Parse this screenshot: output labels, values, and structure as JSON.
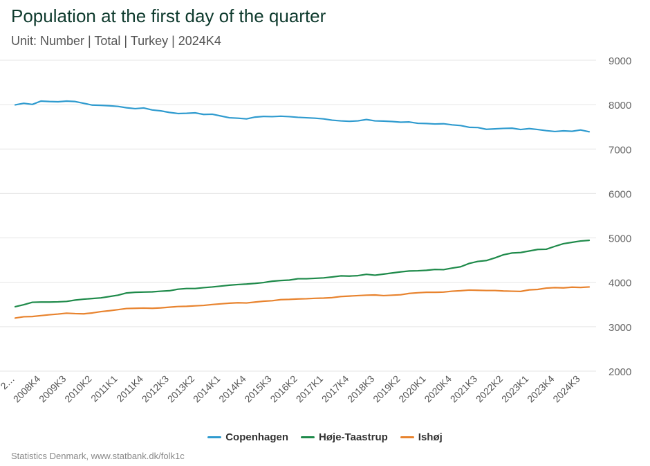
{
  "header": {
    "title": "Population at the first day of the quarter",
    "subtitle": "Unit: Number | Total | Turkey | 2024K4"
  },
  "footer": {
    "credits": "Statistics Denmark, www.statbank.dk/folk1c"
  },
  "chart_data": {
    "type": "line",
    "title": "Population at the first day of the quarter",
    "subtitle": "Unit: Number | Total | Turkey | 2024K4",
    "xlabel": "",
    "ylabel": "",
    "y_axis_position": "right",
    "ylim": [
      2000,
      9000
    ],
    "y_ticks": [
      2000,
      3000,
      4000,
      5000,
      6000,
      7000,
      8000,
      9000
    ],
    "grid": true,
    "legend_position": "bottom",
    "x_tick_labels": [
      "2…",
      "2008K4",
      "2009K3",
      "2010K2",
      "2011K1",
      "2011K4",
      "2012K3",
      "2013K2",
      "2014K1",
      "2014K4",
      "2015K3",
      "2016K2",
      "2017K1",
      "2017K4",
      "2018K3",
      "2019K2",
      "2020K1",
      "2020K4",
      "2021K3",
      "2022K2",
      "2023K1",
      "2023K4",
      "2024K3"
    ],
    "x": [
      "2008K1",
      "2008K2",
      "2008K3",
      "2008K4",
      "2009K1",
      "2009K2",
      "2009K3",
      "2009K4",
      "2010K1",
      "2010K2",
      "2010K3",
      "2010K4",
      "2011K1",
      "2011K2",
      "2011K3",
      "2011K4",
      "2012K1",
      "2012K2",
      "2012K3",
      "2012K4",
      "2013K1",
      "2013K2",
      "2013K3",
      "2013K4",
      "2014K1",
      "2014K2",
      "2014K3",
      "2014K4",
      "2015K1",
      "2015K2",
      "2015K3",
      "2015K4",
      "2016K1",
      "2016K2",
      "2016K3",
      "2016K4",
      "2017K1",
      "2017K2",
      "2017K3",
      "2017K4",
      "2018K1",
      "2018K2",
      "2018K3",
      "2018K4",
      "2019K1",
      "2019K2",
      "2019K3",
      "2019K4",
      "2020K1",
      "2020K2",
      "2020K3",
      "2020K4",
      "2021K1",
      "2021K2",
      "2021K3",
      "2021K4",
      "2022K1",
      "2022K2",
      "2022K3",
      "2022K4",
      "2023K1",
      "2023K2",
      "2023K3",
      "2023K4",
      "2024K1",
      "2024K2",
      "2024K3",
      "2024K4"
    ],
    "series": [
      {
        "name": "Copenhagen",
        "color": "#2f9bcf",
        "values": [
          7995,
          8030,
          8005,
          8080,
          8070,
          8065,
          8080,
          8070,
          8030,
          7990,
          7985,
          7975,
          7960,
          7930,
          7910,
          7925,
          7880,
          7860,
          7825,
          7800,
          7805,
          7815,
          7780,
          7785,
          7745,
          7705,
          7695,
          7680,
          7720,
          7735,
          7730,
          7740,
          7730,
          7715,
          7705,
          7695,
          7680,
          7650,
          7635,
          7625,
          7635,
          7665,
          7635,
          7630,
          7620,
          7605,
          7610,
          7580,
          7575,
          7565,
          7570,
          7545,
          7530,
          7490,
          7485,
          7445,
          7455,
          7465,
          7470,
          7440,
          7460,
          7440,
          7415,
          7395,
          7410,
          7400,
          7430,
          7390
        ]
      },
      {
        "name": "Høje-Taastrup",
        "color": "#1e8a4a",
        "values": [
          3450,
          3495,
          3550,
          3555,
          3555,
          3560,
          3570,
          3600,
          3620,
          3635,
          3650,
          3680,
          3710,
          3760,
          3775,
          3780,
          3785,
          3800,
          3810,
          3845,
          3860,
          3860,
          3880,
          3895,
          3915,
          3935,
          3950,
          3960,
          3975,
          3995,
          4025,
          4040,
          4050,
          4080,
          4080,
          4090,
          4100,
          4120,
          4145,
          4140,
          4150,
          4180,
          4160,
          4185,
          4210,
          4235,
          4255,
          4260,
          4270,
          4290,
          4285,
          4320,
          4350,
          4425,
          4470,
          4490,
          4550,
          4620,
          4660,
          4670,
          4705,
          4740,
          4745,
          4810,
          4870,
          4900,
          4930,
          4945
        ]
      },
      {
        "name": "Ishøj",
        "color": "#e8832e",
        "values": [
          3195,
          3225,
          3230,
          3250,
          3270,
          3285,
          3305,
          3295,
          3290,
          3310,
          3340,
          3360,
          3385,
          3410,
          3415,
          3420,
          3415,
          3425,
          3440,
          3455,
          3460,
          3470,
          3480,
          3500,
          3515,
          3530,
          3540,
          3535,
          3555,
          3575,
          3585,
          3610,
          3615,
          3625,
          3630,
          3640,
          3645,
          3655,
          3680,
          3690,
          3700,
          3710,
          3715,
          3700,
          3710,
          3720,
          3750,
          3765,
          3775,
          3775,
          3780,
          3800,
          3810,
          3825,
          3820,
          3815,
          3815,
          3805,
          3800,
          3795,
          3830,
          3840,
          3870,
          3880,
          3875,
          3890,
          3885,
          3895
        ]
      }
    ]
  }
}
